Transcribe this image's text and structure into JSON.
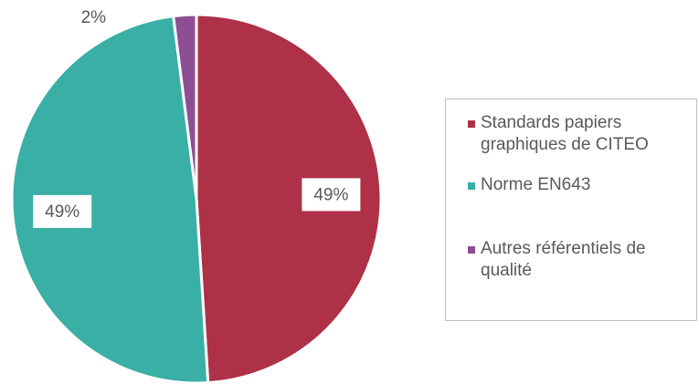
{
  "chart_data": {
    "type": "pie",
    "categories": [
      "Standards papiers graphiques de CITEO",
      "Norme EN643",
      "Autres référentiels de qualité"
    ],
    "values": [
      49,
      49,
      2
    ],
    "value_labels": [
      "49%",
      "49%",
      "2%"
    ],
    "colors": [
      "#ae3148",
      "#3aafa6",
      "#8e4e94"
    ],
    "legend": "right"
  }
}
